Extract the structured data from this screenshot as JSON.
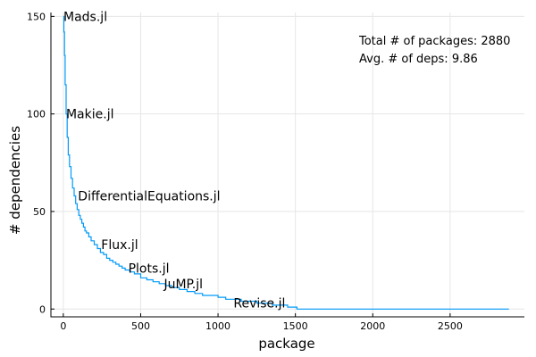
{
  "chart_data": {
    "type": "line",
    "xlabel": "package",
    "ylabel": "# dependencies",
    "xlim": [
      -80,
      2980
    ],
    "ylim": [
      -4,
      152
    ],
    "xticks": [
      0,
      500,
      1000,
      1500,
      2000,
      2500
    ],
    "yticks": [
      0,
      50,
      100,
      150
    ],
    "grid": true,
    "line_color": "#009af9",
    "series": [
      {
        "x": [
          1,
          4,
          8,
          12,
          18,
          25,
          32,
          40,
          50,
          60,
          70,
          80,
          90,
          100,
          110,
          120,
          130,
          140,
          150,
          165,
          180,
          200,
          220,
          240,
          260,
          280,
          300,
          320,
          340,
          360,
          380,
          400,
          430,
          460,
          500,
          540,
          580,
          620,
          660,
          700,
          750,
          800,
          850,
          900,
          950,
          1000,
          1050,
          1100,
          1150,
          1200,
          1250,
          1300,
          1350,
          1400,
          1450,
          1500,
          1510,
          2000,
          2500,
          2880
        ],
        "y": [
          150,
          142,
          130,
          115,
          100,
          88,
          79,
          73,
          67,
          62,
          58,
          54,
          51,
          48,
          46,
          44,
          42,
          40,
          39,
          37,
          35,
          33,
          31,
          29,
          28,
          26,
          25,
          24,
          23,
          22,
          21,
          20,
          19,
          18,
          16,
          15,
          14,
          13,
          12,
          11,
          10,
          9,
          8,
          7,
          7,
          6,
          5,
          5,
          4,
          4,
          3,
          3,
          2,
          2,
          1,
          1,
          0,
          0,
          0,
          0
        ]
      }
    ],
    "annotations": [
      {
        "text": "Mads.jl",
        "x": 1,
        "y": 150
      },
      {
        "text": "Makie.jl",
        "x": 18,
        "y": 100
      },
      {
        "text": "DifferentialEquations.jl",
        "x": 95,
        "y": 58
      },
      {
        "text": "Flux.jl",
        "x": 245,
        "y": 33
      },
      {
        "text": "Plots.jl",
        "x": 420,
        "y": 21
      },
      {
        "text": "JuMP.jl",
        "x": 650,
        "y": 13
      },
      {
        "text": "Revise.jl",
        "x": 1100,
        "y": 3
      }
    ],
    "info_text": {
      "total": "Total # of packages: 2880",
      "avg": "Avg. # of deps: 9.86"
    }
  }
}
